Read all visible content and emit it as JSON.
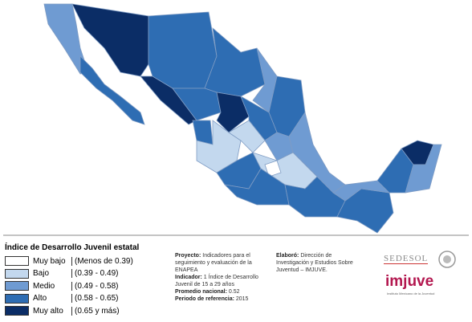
{
  "legend": {
    "title": "Índice de Desarrollo  Juvenil estatal",
    "items": [
      {
        "label": "Muy bajo",
        "range": "(Menos de 0.39)",
        "color": "#ffffff"
      },
      {
        "label": "Bajo",
        "range": "(0.39 - 0.49)",
        "color": "#c3d8ee"
      },
      {
        "label": "Medio",
        "range": "(0.49 - 0.58)",
        "color": "#6f9bd2"
      },
      {
        "label": "Alto",
        "range": "(0.58 - 0.65)",
        "color": "#2e6db3"
      },
      {
        "label": "Muy alto",
        "range": "(0.65 y más)",
        "color": "#0b2d66"
      }
    ]
  },
  "info": {
    "project_label": "Proyecto:",
    "project": "Indicadores para el seguimiento y evaluación de la ENAPEA",
    "indicator_label": "Indicador:",
    "indicator": "1 Índice de Desarrollo Juvenil de 15 a 29 años",
    "average_label": "Promedio nacional:",
    "average": "0.52",
    "period_label": "Periodo de referencia:",
    "period": "2015"
  },
  "credits": {
    "label": "Elaboró:",
    "text": "Dirección de Investigación y Estudios Sobre Juventud – IMJUVE."
  },
  "logos": {
    "sedesol": "SEDESOL",
    "imjuve": "imjuve",
    "imjuve_sub": "Instituto Mexicano de la Juventud"
  }
}
